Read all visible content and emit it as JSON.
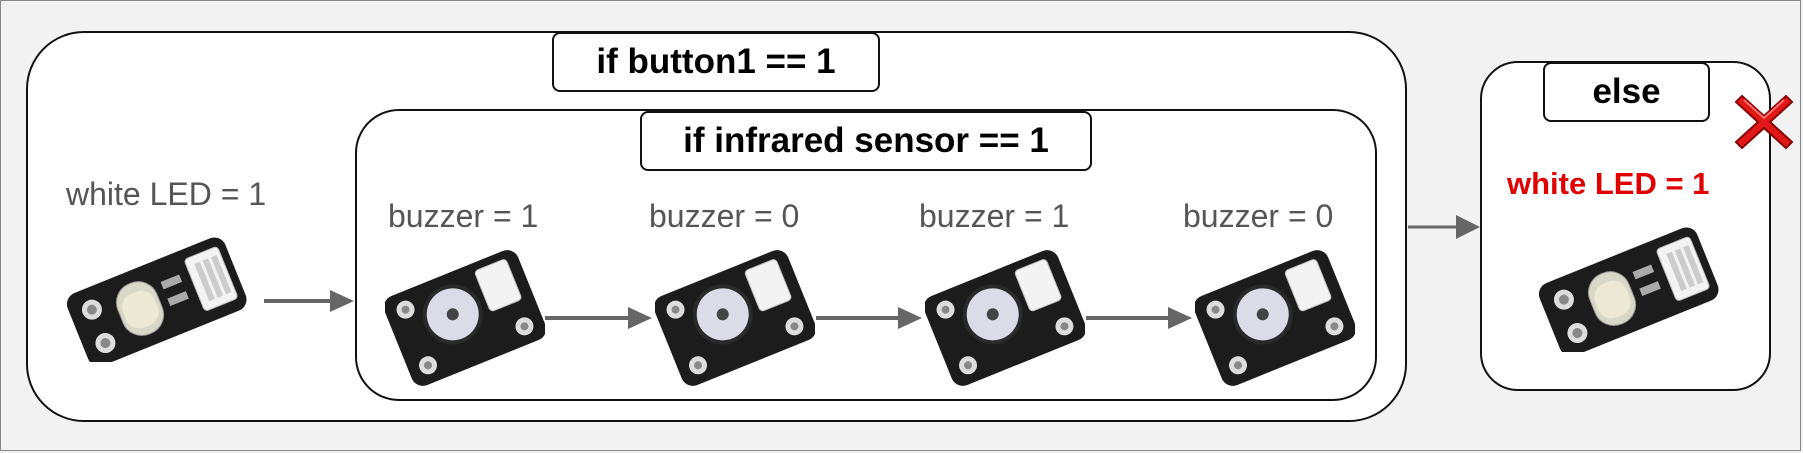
{
  "outer_if": {
    "condition": "if button1 == 1"
  },
  "before_block": {
    "label": "white LED = 1",
    "device_icon": "led-module-icon"
  },
  "inner_if": {
    "condition": "if infrared sensor == 1",
    "steps": [
      {
        "label": "buzzer = 1",
        "device_icon": "buzzer-module-icon"
      },
      {
        "label": "buzzer = 0",
        "device_icon": "buzzer-module-icon"
      },
      {
        "label": "buzzer = 1",
        "device_icon": "buzzer-module-icon"
      },
      {
        "label": "buzzer = 0",
        "device_icon": "buzzer-module-icon"
      }
    ]
  },
  "else_block": {
    "condition": "else",
    "label": "white LED = 1",
    "label_color": "#e00000",
    "status_icon": "red-x-icon",
    "device_icon": "led-module-icon"
  },
  "colors": {
    "arrow": "#666666",
    "border": "#111111",
    "label": "#555555"
  }
}
